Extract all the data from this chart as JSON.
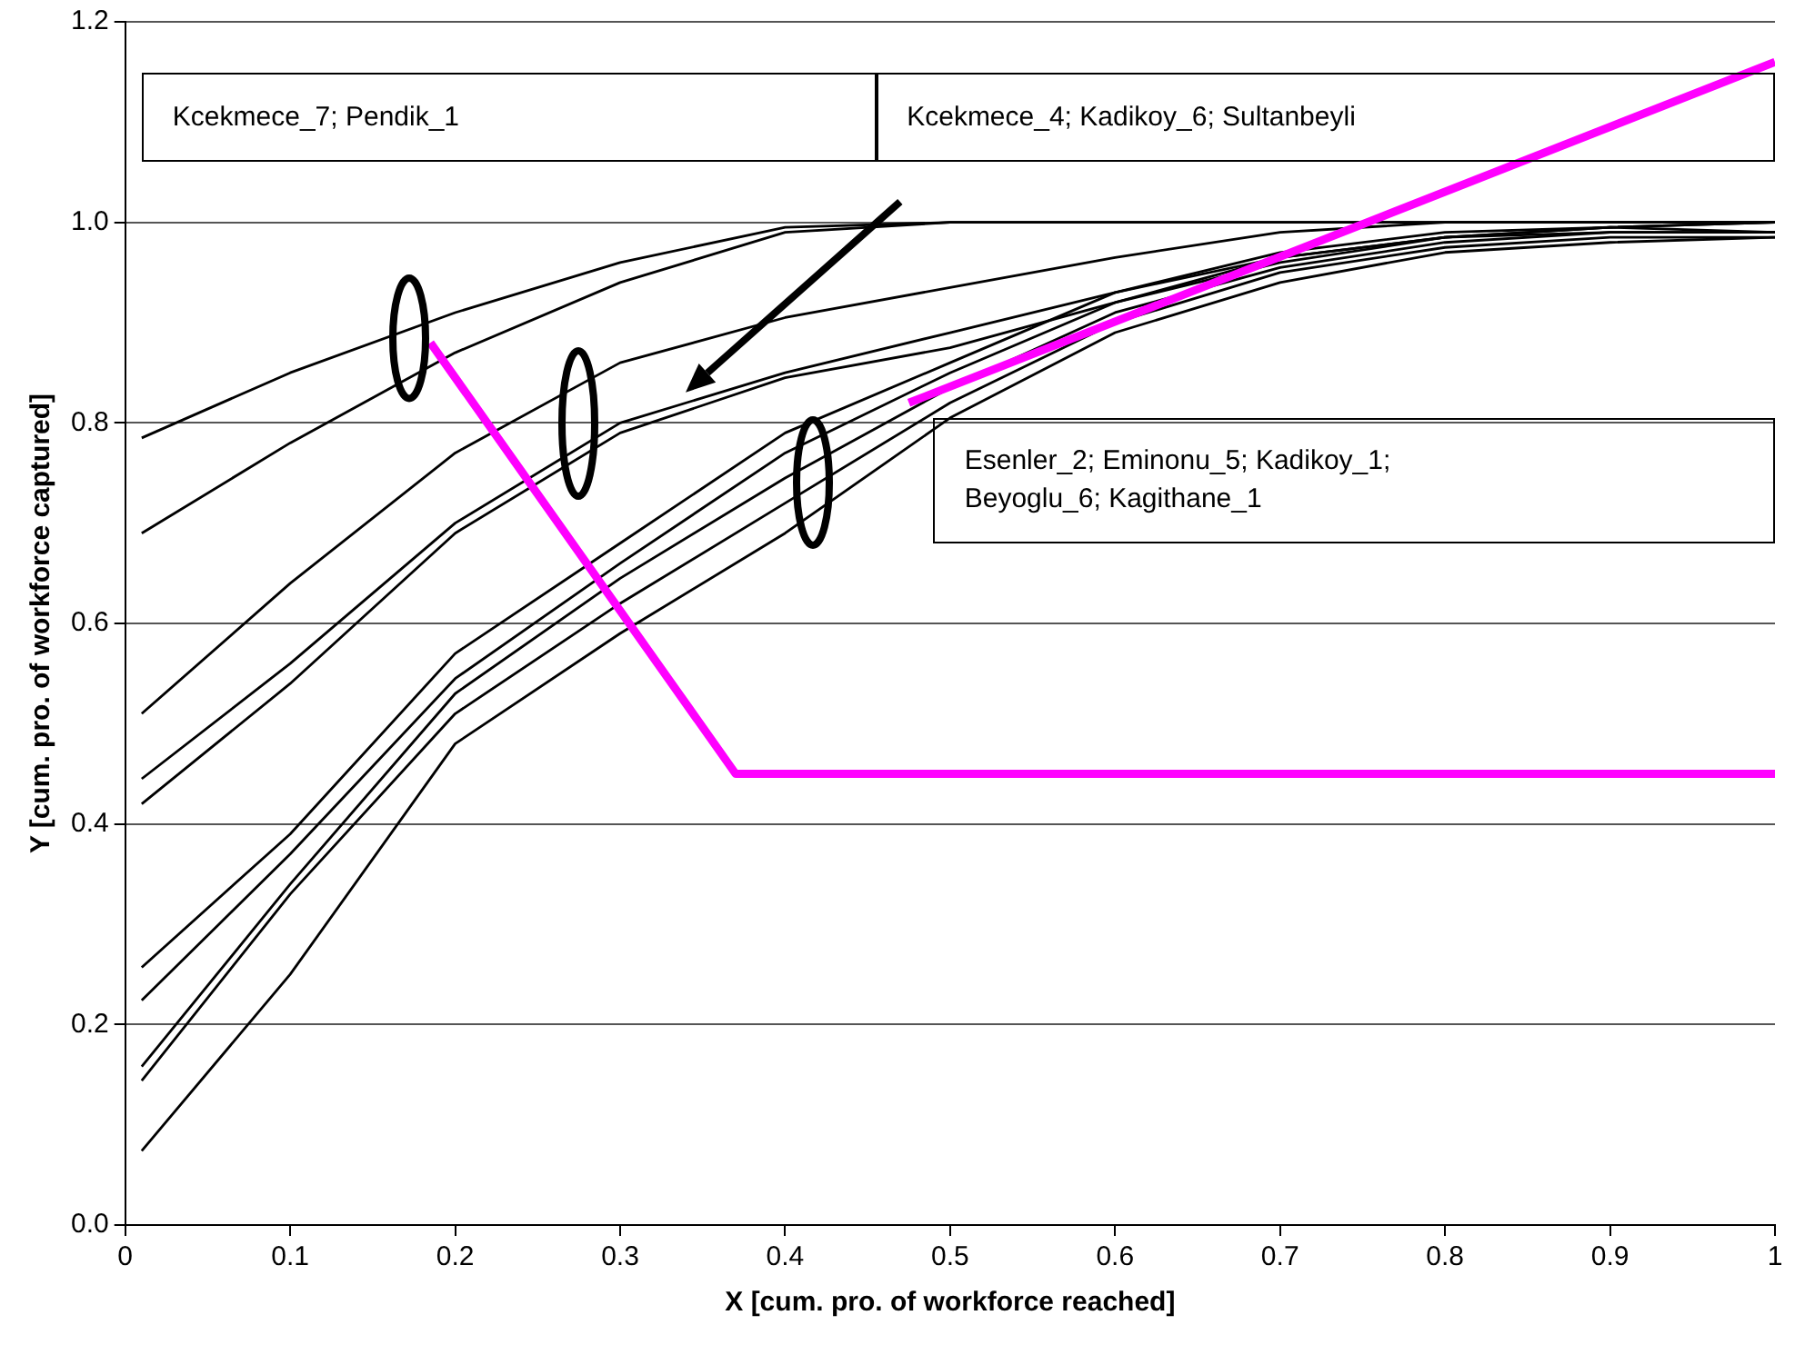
{
  "chart_data": {
    "type": "line",
    "xlabel": "X [cum. pro. of workforce reached]",
    "ylabel": "Y [cum. pro. of workforce captured]",
    "x": [
      0.01,
      0.1,
      0.2,
      0.3,
      0.4,
      0.5,
      0.6,
      0.7,
      0.8,
      0.9,
      1.0
    ],
    "series": [
      {
        "color": "#000000",
        "values": [
          0.785,
          0.85,
          0.91,
          0.96,
          0.995,
          1.0,
          1.0,
          1.0,
          1.0,
          1.0,
          1.0
        ]
      },
      {
        "color": "#000000",
        "values": [
          0.69,
          0.78,
          0.87,
          0.94,
          0.99,
          1.0,
          1.0,
          1.0,
          1.0,
          1.0,
          1.0
        ]
      },
      {
        "color": "#000000",
        "values": [
          0.51,
          0.64,
          0.77,
          0.86,
          0.905,
          0.935,
          0.965,
          0.99,
          1.0,
          1.0,
          1.0
        ]
      },
      {
        "color": "#000000",
        "values": [
          0.445,
          0.56,
          0.7,
          0.8,
          0.85,
          0.89,
          0.93,
          0.965,
          0.985,
          0.995,
          1.0
        ]
      },
      {
        "color": "#000000",
        "values": [
          0.42,
          0.54,
          0.69,
          0.79,
          0.845,
          0.875,
          0.92,
          0.96,
          0.985,
          0.995,
          1.0
        ]
      },
      {
        "color": "#000000",
        "values": [
          0.257,
          0.39,
          0.57,
          0.68,
          0.79,
          0.86,
          0.93,
          0.97,
          0.99,
          0.995,
          0.99
        ]
      },
      {
        "color": "#000000",
        "values": [
          0.224,
          0.37,
          0.545,
          0.66,
          0.77,
          0.85,
          0.92,
          0.965,
          0.985,
          0.99,
          0.99
        ]
      },
      {
        "color": "#000000",
        "values": [
          0.158,
          0.34,
          0.53,
          0.645,
          0.745,
          0.835,
          0.91,
          0.955,
          0.98,
          0.99,
          0.99
        ]
      },
      {
        "color": "#000000",
        "values": [
          0.144,
          0.33,
          0.51,
          0.62,
          0.72,
          0.82,
          0.9,
          0.95,
          0.975,
          0.985,
          0.985
        ]
      },
      {
        "color": "#000000",
        "values": [
          0.074,
          0.25,
          0.48,
          0.59,
          0.69,
          0.805,
          0.89,
          0.94,
          0.97,
          0.98,
          0.985
        ]
      },
      {
        "type": "line",
        "color": "#ff00ff",
        "x": [
          0.185,
          0.37,
          1.0
        ],
        "values": [
          0.88,
          0.45,
          0.45
        ]
      },
      {
        "type": "line",
        "color": "#ff00ff",
        "x": [
          0.475,
          1.0
        ],
        "values": [
          0.82,
          1.16
        ]
      }
    ],
    "xlim": [
      0,
      1
    ],
    "xticks": [
      0,
      0.1,
      0.2,
      0.3,
      0.4,
      0.5,
      0.6,
      0.7,
      0.8,
      0.9,
      1
    ],
    "ylim": [
      0,
      1.2
    ],
    "yticks": [
      {
        "value": 0,
        "label": "0.0"
      },
      {
        "value": 0.2,
        "label": "0.2"
      },
      {
        "value": 0.4,
        "label": "0.4"
      },
      {
        "value": 0.6,
        "label": "0.6"
      },
      {
        "value": 0.8,
        "label": "0.8"
      },
      {
        "value": 1,
        "label": "1.0"
      },
      {
        "value": 1.2,
        "label": "1.2"
      }
    ],
    "grid": "y",
    "legend": false,
    "marker": "none",
    "line_style": "solid",
    "annotations": [
      "Kcekmece_7; Pendik_1",
      "Kcekmece_4; Kadikoy_6; Sultanbeyli",
      "Esenler_2; Eminonu_5; Kadikoy_1; Beyoglu_6; Kagithane_1"
    ]
  }
}
